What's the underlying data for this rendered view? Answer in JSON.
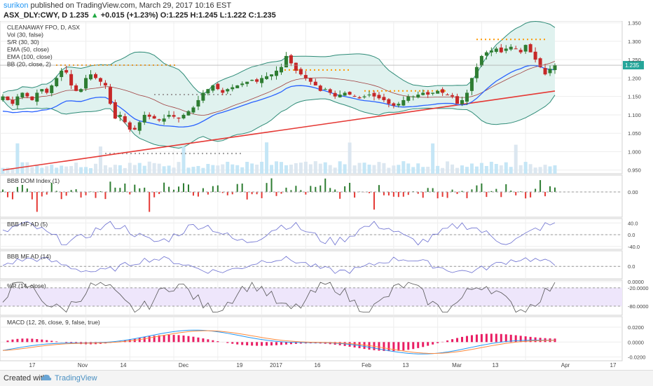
{
  "header": {
    "author": "surikon",
    "published": "published on TradingView.com, March 29, 2017 10:16 EST",
    "symbol": "ASX_DLY:CWY, D",
    "last": "1.235",
    "change_arrow": "▲",
    "change": "+0.015 (+1.23%)",
    "ohlc": "O:1.225 H:1.245 L:1.222 C:1.235"
  },
  "legend": [
    "CLEANAWAY FPO, D, ASX",
    "Vol (30, false)",
    "S/R (30, 30)",
    "EMA (50, close)",
    "EMA (100, close)",
    "BB (20, close, 2)"
  ],
  "colors": {
    "up": "#26a69a",
    "up_candle": "#2e7d32",
    "down": "#c62828",
    "ema50": "#2962ff",
    "ema100": "#e53935",
    "bb": "#2e8b77",
    "bb_fill": "#e0f2ef",
    "osc": "#6b6fd0",
    "wr": "#555555",
    "wr_fill": "#eee6fb",
    "macd": "#2196f3",
    "signal": "#ff8a3d",
    "hist": "#e91e63",
    "sr": "#ff9800",
    "grid": "#eeeeee",
    "price_tag": "#26a69a"
  },
  "chart_data": [
    {
      "type": "candlestick",
      "title": "CLEANAWAY FPO, D, ASX",
      "ylim": [
        0.94,
        1.355
      ],
      "yticks": [
        "1.350",
        "1.300",
        "1.250",
        "1.200",
        "1.150",
        "1.100",
        "1.050",
        "1.000",
        "0.950"
      ],
      "price_label": "1.235",
      "x_ticks": [
        "17",
        "Nov",
        "14",
        "Dec",
        "19",
        "2017",
        "16",
        "Feb",
        "13",
        "Mar",
        "13",
        "Apr",
        "17"
      ],
      "close": [
        1.15,
        1.14,
        1.13,
        1.15,
        1.16,
        1.15,
        1.14,
        1.16,
        1.17,
        1.16,
        1.18,
        1.2,
        1.22,
        1.215,
        1.18,
        1.165,
        1.17,
        1.2,
        1.21,
        1.2,
        1.19,
        1.18,
        1.13,
        1.09,
        1.1,
        1.08,
        1.06,
        1.06,
        1.08,
        1.1,
        1.095,
        1.09,
        1.085,
        1.09,
        1.1,
        1.095,
        1.09,
        1.1,
        1.11,
        1.12,
        1.14,
        1.16,
        1.17,
        1.18,
        1.17,
        1.16,
        1.17,
        1.175,
        1.18,
        1.185,
        1.19,
        1.195,
        1.19,
        1.2,
        1.205,
        1.21,
        1.22,
        1.23,
        1.26,
        1.24,
        1.22,
        1.21,
        1.2,
        1.19,
        1.18,
        1.165,
        1.17,
        1.16,
        1.15,
        1.155,
        1.16,
        1.155,
        1.15,
        1.145,
        1.15,
        1.155,
        1.15,
        1.145,
        1.14,
        1.13,
        1.125,
        1.13,
        1.14,
        1.15,
        1.15,
        1.155,
        1.16,
        1.155,
        1.16,
        1.165,
        1.16,
        1.155,
        1.15,
        1.13,
        1.14,
        1.16,
        1.2,
        1.23,
        1.26,
        1.27,
        1.275,
        1.28,
        1.27,
        1.28,
        1.285,
        1.28,
        1.27,
        1.29,
        1.27,
        1.25,
        1.23,
        1.21,
        1.225,
        1.235
      ]
    },
    {
      "type": "histogram",
      "title": "BBB DOM Index (1)",
      "ylim": [
        -0.06,
        0.04
      ],
      "yticks": [
        "0.00"
      ]
    },
    {
      "type": "line",
      "title": "BBB MF AD (5)",
      "ylim": [
        -50,
        55
      ],
      "yticks": [
        "40.0",
        "0.0",
        "-40.0"
      ]
    },
    {
      "type": "line",
      "title": "BBB MF AD (14)",
      "ylim": [
        -20,
        25
      ],
      "yticks": [
        "0.0"
      ]
    },
    {
      "type": "line",
      "title": "%R (14, close)",
      "ylim": [
        -110,
        5
      ],
      "yticks": [
        "0.0000",
        "-20.0000",
        "-80.0000"
      ]
    },
    {
      "type": "line",
      "title": "MACD (12, 26, close, 9, false, true)",
      "ylim": [
        -0.025,
        0.034
      ],
      "yticks": [
        "0.0200",
        "0.0000",
        "-0.0200"
      ]
    }
  ],
  "footer": {
    "made": "Created with",
    "brand": "TradingView"
  }
}
